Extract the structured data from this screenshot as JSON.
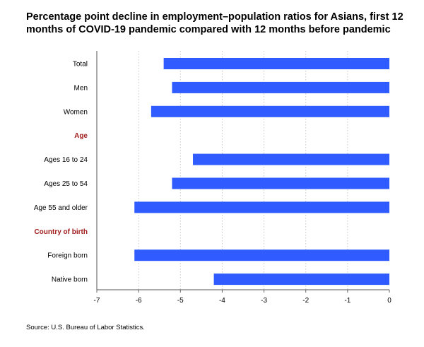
{
  "chart_data": {
    "type": "bar",
    "orientation": "horizontal",
    "title_lines": [
      "Percentage point decline in employment–population ratios for Asians, first 12",
      "months of COVID-19 pandemic compared with 12 months before pandemic"
    ],
    "source": "Source: U.S. Bureau of Labor Statistics.",
    "xlim": [
      -7,
      0
    ],
    "xticks": [
      "-7",
      "-6",
      "-5",
      "-4",
      "-3",
      "-2",
      "-1",
      "0"
    ],
    "grid": "vertical dotted",
    "bar_color": "#2f5bff",
    "section_color": "#a01c1c",
    "rows": [
      {
        "label": "Total",
        "value": -5.4
      },
      {
        "label": "Men",
        "value": -5.2
      },
      {
        "label": "Women",
        "value": -5.7
      },
      {
        "label": "Age",
        "section": true
      },
      {
        "label": "Ages 16 to 24",
        "value": -4.7
      },
      {
        "label": "Ages 25 to 54",
        "value": -5.2
      },
      {
        "label": "Age 55 and older",
        "value": -6.1
      },
      {
        "label": "Country of birth",
        "section": true
      },
      {
        "label": "Foreign born",
        "value": -6.1
      },
      {
        "label": "Native born",
        "value": -4.2
      }
    ]
  }
}
